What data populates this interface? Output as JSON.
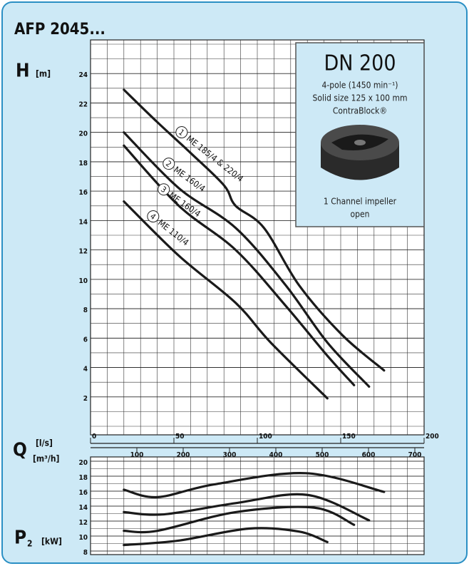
{
  "title": "AFP 2045...",
  "info_box": {
    "heading": "DN 200",
    "lines": [
      "4-pole (1450 min⁻¹)",
      "Solid size 125 x 100 mm",
      "ContraBlock®"
    ],
    "caption": [
      "1 Channel impeller",
      "open"
    ]
  },
  "chart_data": [
    {
      "type": "line",
      "y_label": "H",
      "y_unit": "[m]",
      "x_label": "Q",
      "x_unit": "[l/s]",
      "x2_unit": "[m³/h]",
      "xlim": [
        0,
        200
      ],
      "xticks": [
        0,
        50,
        100,
        150,
        200
      ],
      "x2lim": [
        0,
        720
      ],
      "x2ticks": [
        100,
        200,
        300,
        400,
        500,
        600,
        700
      ],
      "ylim": [
        0,
        26
      ],
      "yticks": [
        2,
        4,
        6,
        8,
        10,
        12,
        14,
        16,
        18,
        20,
        22,
        24
      ],
      "grid": true,
      "series": [
        {
          "name": "ME 185/4 & 220/4",
          "label": "1",
          "color": "#1a1a1a",
          "x": [
            20,
            40,
            60,
            80,
            87,
            104,
            125,
            151,
            176
          ],
          "values": [
            22.9,
            20.7,
            18.6,
            16.4,
            15.0,
            13.5,
            9.6,
            6.2,
            3.8
          ]
        },
        {
          "name": "ME 160/4",
          "label": "2",
          "color": "#1a1a1a",
          "x": [
            20,
            53,
            87,
            117,
            142,
            167
          ],
          "values": [
            20.0,
            16.2,
            13.5,
            9.6,
            5.7,
            2.7
          ]
        },
        {
          "name": "ME 160/4",
          "label": "3",
          "color": "#1a1a1a",
          "x": [
            20,
            53,
            87,
            117,
            142,
            158
          ],
          "values": [
            19.1,
            15.0,
            12.0,
            8.2,
            4.8,
            2.8
          ]
        },
        {
          "name": "ME 110/4",
          "label": "4",
          "color": "#1a1a1a",
          "x": [
            20,
            53,
            87,
            108,
            142
          ],
          "values": [
            15.3,
            11.6,
            8.4,
            5.7,
            1.9
          ]
        }
      ]
    },
    {
      "type": "line",
      "y_label": "P",
      "y_sub": "2",
      "y_unit": "[kW]",
      "xlim": [
        0,
        200
      ],
      "ylim": [
        8,
        20
      ],
      "yticks": [
        8,
        10,
        12,
        14,
        16,
        18,
        20
      ],
      "grid": true,
      "series": [
        {
          "color": "#1a1a1a",
          "x": [
            20,
            40,
            74,
            129,
            176
          ],
          "values": [
            16.2,
            15.2,
            16.9,
            18.4,
            15.9
          ]
        },
        {
          "color": "#1a1a1a",
          "x": [
            20,
            44,
            87,
            130,
            167
          ],
          "values": [
            13.2,
            12.9,
            14.4,
            15.5,
            12.1
          ]
        },
        {
          "color": "#1a1a1a",
          "x": [
            20,
            40,
            87,
            134,
            158
          ],
          "values": [
            10.7,
            10.7,
            13.2,
            13.8,
            11.5
          ]
        },
        {
          "color": "#1a1a1a",
          "x": [
            20,
            53,
            95,
            125,
            142
          ],
          "values": [
            8.8,
            9.4,
            11.0,
            10.6,
            9.2
          ]
        }
      ]
    }
  ]
}
